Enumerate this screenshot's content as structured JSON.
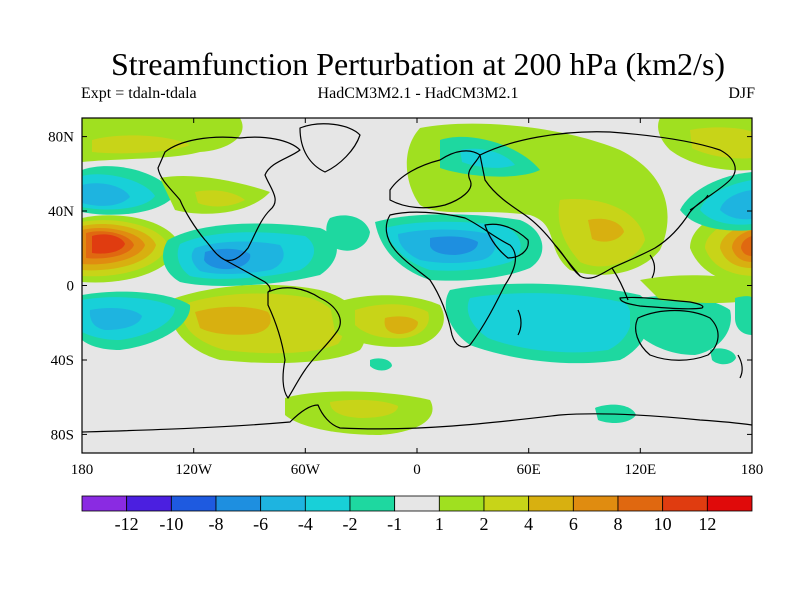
{
  "header": {
    "title": "Streamfunction Perturbation at 200 hPa (km2/s)",
    "left": "Expt = tdaln-tdala",
    "center": "HadCM3M2.1 - HadCM3M2.1",
    "right": "DJF"
  },
  "map": {
    "projection": "cylindrical-equidistant",
    "lon_range": [
      -180,
      180
    ],
    "lat_range": [
      -90,
      90
    ],
    "background_color": "#e6e6e6",
    "lat_ticks": [
      {
        "lat": 80,
        "label": "80N"
      },
      {
        "lat": 40,
        "label": "40N"
      },
      {
        "lat": 0,
        "label": "0"
      },
      {
        "lat": -40,
        "label": "40S"
      },
      {
        "lat": -80,
        "label": "80S"
      }
    ],
    "lon_ticks": [
      {
        "lon": -180,
        "label": "180"
      },
      {
        "lon": -120,
        "label": "120W"
      },
      {
        "lon": -60,
        "label": "60W"
      },
      {
        "lon": 0,
        "label": "0"
      },
      {
        "lon": 60,
        "label": "60E"
      },
      {
        "lon": 120,
        "label": "120E"
      },
      {
        "lon": 180,
        "label": "180"
      }
    ]
  },
  "colorbar": {
    "colors": [
      "#8a2be2",
      "#4b1fe0",
      "#1e5ae0",
      "#1e8fe0",
      "#1eb4e0",
      "#18d0d8",
      "#1ed8a0",
      "#e6e6e6",
      "#a0e020",
      "#c8d418",
      "#d8b010",
      "#e08c10",
      "#e06810",
      "#e03c10",
      "#e00a0a"
    ],
    "labels": [
      "-12",
      "-10",
      "-8",
      "-6",
      "-4",
      "-2",
      "-1",
      "1",
      "2",
      "4",
      "6",
      "8",
      "10",
      "12"
    ]
  },
  "chart_data": {
    "type": "heatmap",
    "variable": "Streamfunction Perturbation at 200 hPa (km2/s)",
    "season": "DJF",
    "levels": [
      -12,
      -10,
      -8,
      -6,
      -4,
      -2,
      -1,
      1,
      2,
      4,
      6,
      8,
      10,
      12
    ],
    "anomalies": [
      {
        "name": "N Pacific positive center",
        "lon": -168,
        "lat": 22,
        "peak": 11
      },
      {
        "name": "N Pacific positive east",
        "lon": 180,
        "lat": 22,
        "peak": 7
      },
      {
        "name": "N Pacific negative",
        "lon": -170,
        "lat": 48,
        "peak": -5
      },
      {
        "name": "Central America negative",
        "lon": -110,
        "lat": 17,
        "peak": -6
      },
      {
        "name": "Africa-Arabia negative",
        "lon": 20,
        "lat": 20,
        "peak": -5
      },
      {
        "name": "Asia positive",
        "lon": 95,
        "lat": 28,
        "peak": 5
      },
      {
        "name": "South America positive",
        "lon": -110,
        "lat": -20,
        "peak": 5
      },
      {
        "name": "South Atlantic positive",
        "lon": -10,
        "lat": -22,
        "peak": 4
      },
      {
        "name": "Indian Ocean negative",
        "lon": 60,
        "lat": -20,
        "peak": -3
      },
      {
        "name": "S Pacific negative",
        "lon": -165,
        "lat": -18,
        "peak": -4
      },
      {
        "name": "Antarctic positive",
        "lon": -30,
        "lat": -72,
        "peak": 2
      }
    ]
  }
}
